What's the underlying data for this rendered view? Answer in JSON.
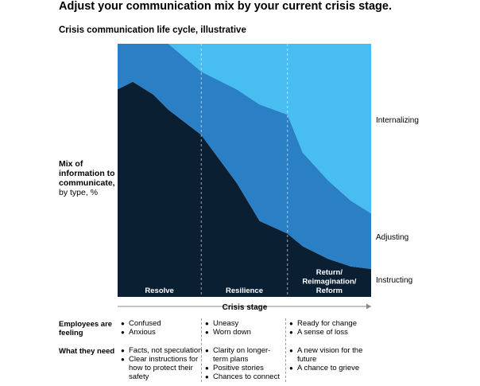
{
  "title": "Adjust your communication mix by your current crisis stage.",
  "subtitle": "Crisis communication life cycle, illustrative",
  "y_label_bold": "Mix of information to communicate,",
  "y_label_regular": "by type, %",
  "chart_data": {
    "type": "area",
    "stacked": true,
    "title": "Crisis communication life cycle, illustrative",
    "ylabel": "Mix of information to communicate, by type, %",
    "xlabel": "Crisis stage",
    "ylim": [
      0,
      100
    ],
    "x": [
      0,
      0.06,
      0.14,
      0.2,
      0.33,
      0.47,
      0.56,
      0.67,
      0.73,
      0.83,
      0.92,
      1.0
    ],
    "stages": [
      "Resolve",
      "Resilience",
      "Return/ Reimagination/ Reform"
    ],
    "stage_boundaries": [
      0.33,
      0.67
    ],
    "series": [
      {
        "name": "Instructing",
        "values": [
          82,
          85,
          80,
          74,
          64,
          45,
          30,
          25,
          20,
          15,
          12,
          11
        ]
      },
      {
        "name": "Adjusting",
        "values": [
          18,
          15,
          20,
          26,
          25,
          37,
          46,
          47,
          37,
          31,
          26,
          22
        ]
      },
      {
        "name": "Internalizing",
        "values": [
          0,
          0,
          0,
          0,
          11,
          18,
          24,
          28,
          43,
          54,
          62,
          67
        ]
      }
    ],
    "colors": {
      "Instructing": "#0b1f33",
      "Adjusting": "#2b7fc4",
      "Internalizing": "#47bdf2"
    },
    "grid": false,
    "legend": "right"
  },
  "rows": {
    "feeling_label": "Employees are feeling",
    "need_label": "What they need",
    "feeling": [
      [
        "Confused",
        "Anxious"
      ],
      [
        "Uneasy",
        "Worn down"
      ],
      [
        "Ready for change",
        "A sense of loss"
      ]
    ],
    "need": [
      [
        "Facts, not speculation",
        "Clear instructions for how to protect their safety"
      ],
      [
        "Clarity on longer-term plans",
        "Positive stories",
        "Chances to connect"
      ],
      [
        "A new vision for the future",
        "A chance to grieve"
      ]
    ]
  }
}
